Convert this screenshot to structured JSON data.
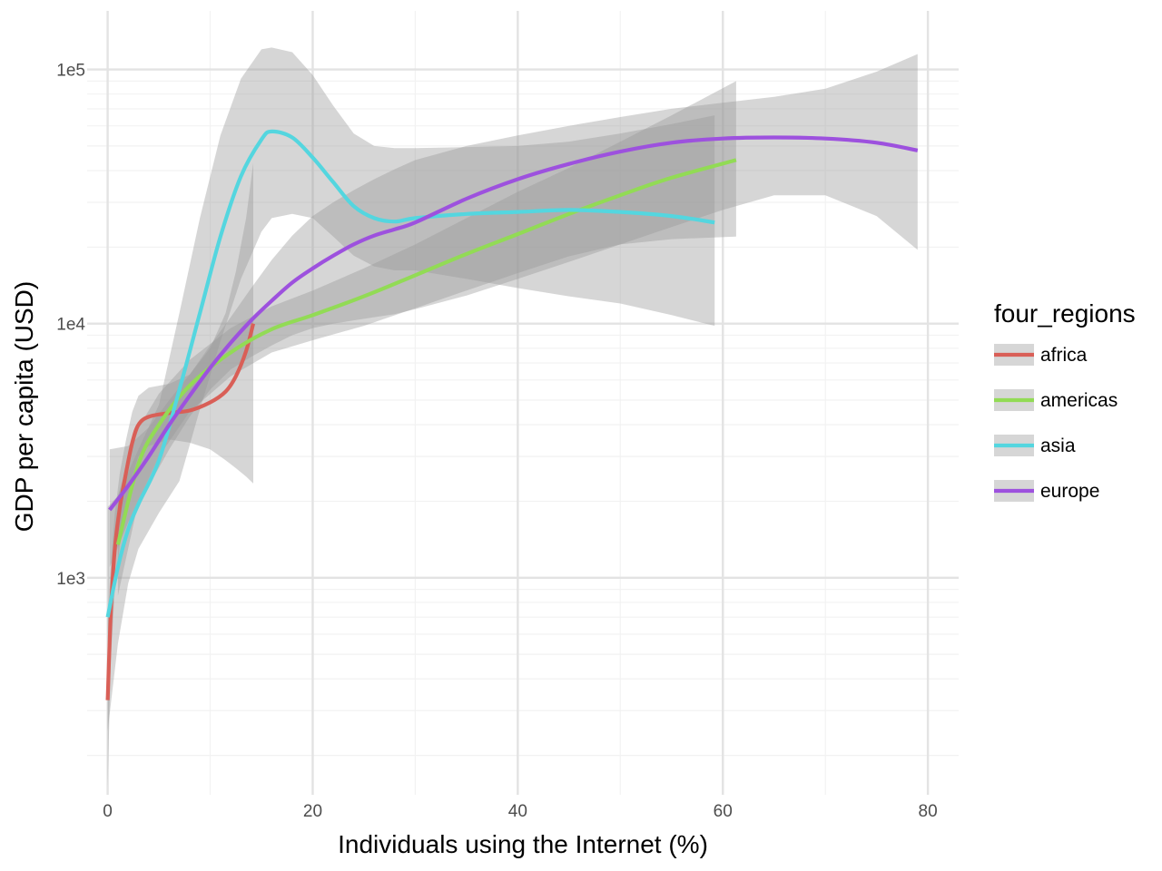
{
  "chart_data": {
    "type": "line",
    "xlabel": "Individuals using the Internet (%)",
    "ylabel": "GDP per capita (USD)",
    "xlim": [
      -2,
      83
    ],
    "ylim": [
      140,
      170000
    ],
    "y_scale": "log10",
    "x_ticks": [
      {
        "value": 0,
        "label": "0"
      },
      {
        "value": 20,
        "label": "20"
      },
      {
        "value": 40,
        "label": "40"
      },
      {
        "value": 60,
        "label": "60"
      },
      {
        "value": 80,
        "label": "80"
      }
    ],
    "y_ticks": [
      {
        "value": 1000,
        "label": "1e3"
      },
      {
        "value": 10000,
        "label": "1e4"
      },
      {
        "value": 100000,
        "label": "1e5"
      }
    ],
    "grid": true,
    "legend": {
      "title": "four_regions",
      "position": "right"
    },
    "series": [
      {
        "name": "africa",
        "color": "#D95F57",
        "x": [
          0,
          0.3,
          0.7,
          1.2,
          1.8,
          2.4,
          3.0,
          4.0,
          6.0,
          8.0,
          10.0,
          11.5,
          12.5,
          13.5,
          14.2
        ],
        "y": [
          330,
          720,
          1300,
          1900,
          2600,
          3400,
          4000,
          4300,
          4450,
          4550,
          4900,
          5400,
          6200,
          7800,
          10000
        ],
        "lower": [
          150,
          470,
          900,
          1350,
          1850,
          2500,
          3000,
          3300,
          3500,
          3400,
          3200,
          2900,
          2700,
          2500,
          2350
        ],
        "upper": [
          700,
          1100,
          1800,
          2600,
          3500,
          4500,
          5200,
          5600,
          5800,
          6300,
          8000,
          11000,
          16000,
          26000,
          43000
        ]
      },
      {
        "name": "americas",
        "color": "#92DB55",
        "x": [
          1,
          3,
          5,
          8,
          12,
          16,
          20,
          25,
          30,
          35,
          40,
          45,
          50,
          55,
          61.3
        ],
        "y": [
          1350,
          2800,
          4000,
          5700,
          7700,
          9500,
          10800,
          12800,
          15500,
          18800,
          22500,
          27000,
          32000,
          37500,
          44000
        ],
        "lower": [
          850,
          2000,
          3000,
          4500,
          6200,
          7700,
          8600,
          9800,
          11500,
          13500,
          15800,
          18400,
          20500,
          21500,
          22000
        ],
        "upper": [
          2100,
          3900,
          5300,
          7200,
          9600,
          11700,
          13500,
          16500,
          20500,
          26000,
          33000,
          41000,
          52000,
          66000,
          90000
        ]
      },
      {
        "name": "asia",
        "color": "#54D6DF",
        "x": [
          0,
          1,
          2,
          3,
          5,
          7,
          9,
          11,
          13,
          15,
          16,
          18,
          20,
          22,
          24,
          26,
          28,
          30,
          35,
          40,
          45,
          50,
          55,
          59.2
        ],
        "y": [
          700,
          1100,
          1550,
          1950,
          2900,
          5500,
          11000,
          22000,
          38000,
          53000,
          57000,
          54000,
          45000,
          36000,
          29000,
          26000,
          25200,
          26000,
          27000,
          27500,
          28000,
          27500,
          26500,
          25000
        ],
        "lower": [
          250,
          550,
          950,
          1300,
          1800,
          2400,
          4600,
          8500,
          15000,
          23000,
          26000,
          27000,
          26000,
          22000,
          18500,
          16800,
          16200,
          16200,
          15000,
          13800,
          12800,
          12000,
          10800,
          9800
        ],
        "upper": [
          1900,
          2100,
          2600,
          3200,
          4800,
          11000,
          26000,
          55000,
          92000,
          120000,
          122000,
          117000,
          95000,
          72000,
          56000,
          50000,
          49000,
          49000,
          49500,
          50000,
          52000,
          56000,
          61000,
          66000
        ]
      },
      {
        "name": "europe",
        "color": "#9D51DE",
        "x": [
          0.2,
          2,
          4,
          6,
          8,
          10,
          12,
          14,
          16,
          18,
          20,
          22,
          24,
          26,
          28,
          30,
          35,
          40,
          45,
          50,
          55,
          60,
          65,
          70,
          75,
          79
        ],
        "y": [
          1850,
          2300,
          3000,
          4000,
          5200,
          6700,
          8400,
          10300,
          12300,
          14500,
          16500,
          18500,
          20500,
          22200,
          23500,
          25000,
          31000,
          37000,
          42500,
          47500,
          51500,
          53500,
          54000,
          53500,
          51500,
          48000
        ],
        "lower": [
          1100,
          1650,
          2300,
          3200,
          4300,
          5500,
          6600,
          7400,
          8200,
          9000,
          9600,
          10000,
          10300,
          10600,
          10900,
          11400,
          12900,
          15000,
          17500,
          20500,
          24000,
          28000,
          32000,
          32000,
          26500,
          19500
        ],
        "upper": [
          3200,
          3300,
          3900,
          5000,
          6300,
          8200,
          10600,
          13800,
          17800,
          22200,
          26500,
          30000,
          33500,
          37000,
          40500,
          44000,
          50000,
          55000,
          60000,
          65000,
          70000,
          74000,
          78000,
          84000,
          98000,
          115000
        ]
      }
    ]
  }
}
